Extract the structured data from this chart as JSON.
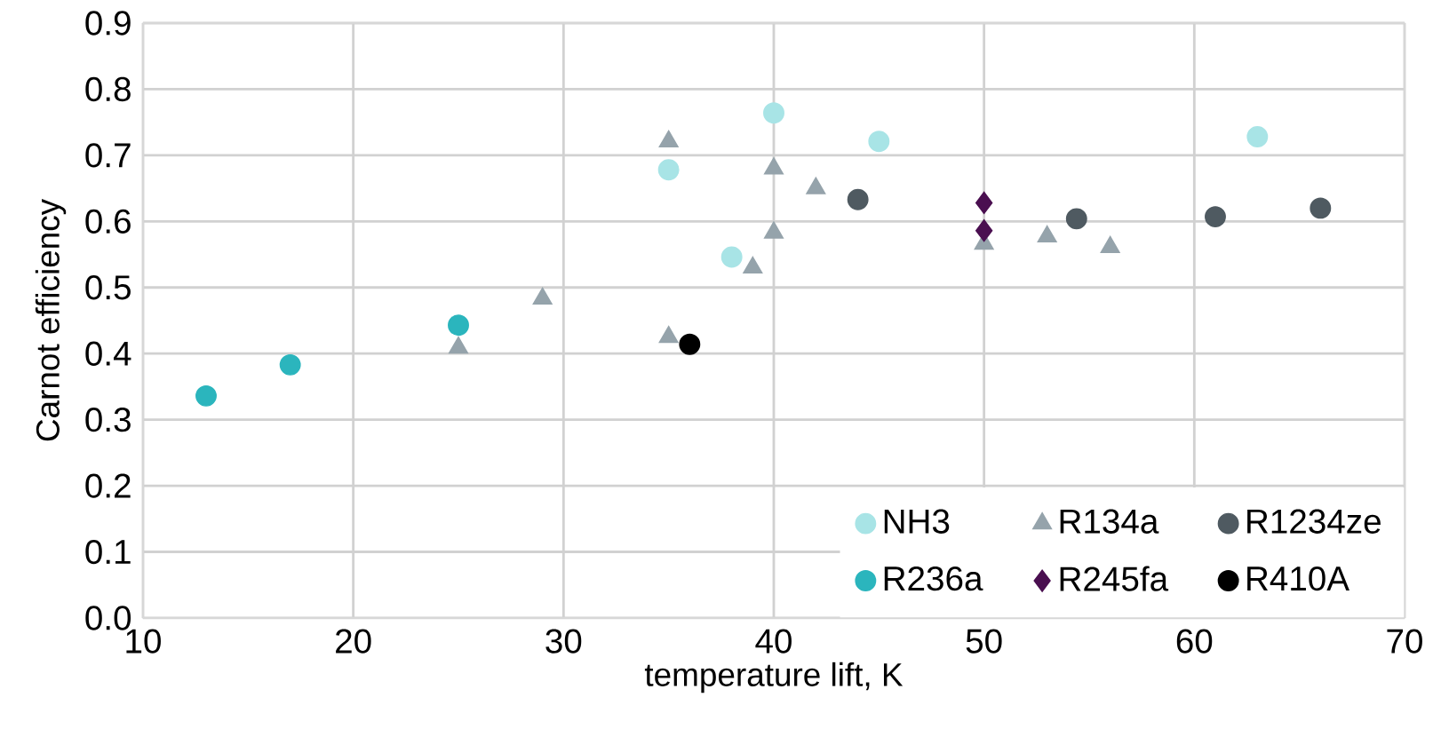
{
  "chart_data": {
    "type": "scatter",
    "xlabel": "temperature lift, K",
    "ylabel": "Carnot efficiency",
    "xlim": [
      10,
      70
    ],
    "xticks": [
      10,
      20,
      30,
      40,
      50,
      60,
      70
    ],
    "ylim": [
      0,
      0.9
    ],
    "yticks": [
      {
        "value": 0,
        "label": "0.0"
      },
      0.1,
      0.2,
      0.3,
      0.4,
      0.5,
      0.6,
      0.7,
      0.8,
      0.9
    ],
    "grid": true,
    "legend": "bottom right",
    "series": [
      {
        "name": "NH3",
        "color": "#a8e4e6",
        "marker": "circle",
        "x": [
          35,
          40,
          45,
          38,
          63
        ],
        "values": [
          0.678,
          0.764,
          0.721,
          0.546,
          0.728
        ]
      },
      {
        "name": "R134a",
        "color": "#95a3ab",
        "marker": "triangle",
        "x": [
          35,
          40,
          42,
          40,
          39,
          29,
          25,
          35,
          50,
          53,
          56
        ],
        "values": [
          0.721,
          0.68,
          0.65,
          0.583,
          0.53,
          0.483,
          0.409,
          0.425,
          0.566,
          0.577,
          0.561
        ]
      },
      {
        "name": "R1234ze",
        "color": "#4f5a61",
        "marker": "circle",
        "x": [
          44,
          54.4,
          61,
          66
        ],
        "values": [
          0.633,
          0.604,
          0.607,
          0.62
        ]
      },
      {
        "name": "R236a",
        "color": "#2bb5bd",
        "marker": "circle",
        "x": [
          13,
          17,
          25
        ],
        "values": [
          0.336,
          0.383,
          0.443
        ]
      },
      {
        "name": "R245fa",
        "color": "#4a0f50",
        "marker": "diamond",
        "x": [
          50,
          50
        ],
        "values": [
          0.628,
          0.586
        ]
      },
      {
        "name": "R410A",
        "color": "#000000",
        "marker": "circle",
        "x": [
          36
        ],
        "values": [
          0.414
        ]
      }
    ]
  }
}
